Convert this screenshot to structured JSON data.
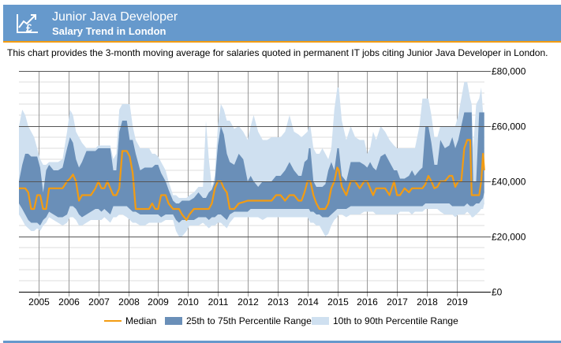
{
  "header": {
    "icon": "salary-trend-pound-icon",
    "title": "Junior Java Developer",
    "subtitle": "Salary Trend in London"
  },
  "description": "This chart provides the 3-month moving average for salaries quoted in permanent IT jobs citing Junior Java Developer in London.",
  "colors": {
    "header_bg": "#6699cc",
    "header_border": "#f39c12",
    "median": "#f39c12",
    "iqr_band": "#6a8fb8",
    "decile_band": "#cfe0f0"
  },
  "chart_data": {
    "type": "area",
    "title": "Junior Java Developer Salary Trend in London",
    "xlabel": "",
    "ylabel": "",
    "ylim": [
      0,
      80000
    ],
    "xlim": [
      2004.34,
      2019.92
    ],
    "y_ticks": [
      0,
      20000,
      40000,
      60000,
      80000
    ],
    "y_tick_labels": [
      "£0",
      "£20,000",
      "£40,000",
      "£60,000",
      "£80,000"
    ],
    "y_minor_step": 4000,
    "x_ticks": [
      2005,
      2006,
      2007,
      2008,
      2009,
      2010,
      2011,
      2012,
      2013,
      2014,
      2015,
      2016,
      2017,
      2018,
      2019
    ],
    "x_tick_labels": [
      "2005",
      "2006",
      "2007",
      "2008",
      "2009",
      "2010",
      "2011",
      "2012",
      "2013",
      "2014",
      "2015",
      "2016",
      "2017",
      "2018",
      "2019"
    ],
    "grid": true,
    "y_axis_position": "right",
    "legend": {
      "placement": "bottom",
      "entries": [
        {
          "label": "Median",
          "kind": "line"
        },
        {
          "label": "25th to 75th Percentile Range",
          "kind": "band-dark"
        },
        {
          "label": "10th to 90th Percentile Range",
          "kind": "band-light"
        }
      ]
    },
    "series_columns": [
      "year",
      "p10",
      "p25",
      "median",
      "p75",
      "p90"
    ],
    "series": [
      [
        2004.34,
        28000,
        32000,
        37500,
        40000,
        60000
      ],
      [
        2004.45,
        26000,
        30000,
        37500,
        46000,
        66000
      ],
      [
        2004.55,
        24000,
        28000,
        37500,
        50000,
        64000
      ],
      [
        2004.65,
        23000,
        26000,
        36000,
        50000,
        60000
      ],
      [
        2004.75,
        22000,
        25000,
        30000,
        49000,
        58000
      ],
      [
        2004.85,
        22000,
        25000,
        30000,
        49000,
        56000
      ],
      [
        2004.95,
        23000,
        25000,
        35000,
        49000,
        52000
      ],
      [
        2005.05,
        22000,
        24000,
        35000,
        45000,
        48000
      ],
      [
        2005.15,
        24000,
        26000,
        30000,
        36000,
        46000
      ],
      [
        2005.25,
        25000,
        27000,
        30000,
        44000,
        46000
      ],
      [
        2005.35,
        27000,
        29000,
        37500,
        46000,
        47000
      ],
      [
        2005.5,
        26000,
        28000,
        37500,
        44000,
        47000
      ],
      [
        2005.65,
        25000,
        27000,
        37500,
        44000,
        47000
      ],
      [
        2005.8,
        24000,
        27000,
        37500,
        45000,
        48000
      ],
      [
        2005.95,
        25000,
        28000,
        40000,
        52000,
        58000
      ],
      [
        2006.05,
        27000,
        31000,
        41000,
        56000,
        66000
      ],
      [
        2006.15,
        27000,
        31000,
        42500,
        54000,
        64000
      ],
      [
        2006.25,
        26000,
        30000,
        40000,
        48000,
        58000
      ],
      [
        2006.35,
        24000,
        28000,
        33000,
        45000,
        56000
      ],
      [
        2006.45,
        24000,
        27000,
        35000,
        47000,
        54000
      ],
      [
        2006.6,
        25000,
        28000,
        35000,
        51000,
        52000
      ],
      [
        2006.75,
        26000,
        29000,
        35000,
        51000,
        52000
      ],
      [
        2006.9,
        26000,
        30000,
        37500,
        51000,
        52000
      ],
      [
        2007.0,
        26000,
        30000,
        40000,
        52000,
        53000
      ],
      [
        2007.1,
        26000,
        29000,
        37500,
        52000,
        53000
      ],
      [
        2007.2,
        27000,
        30000,
        37500,
        52000,
        53000
      ],
      [
        2007.3,
        26000,
        29000,
        40000,
        52000,
        53000
      ],
      [
        2007.4,
        25000,
        28000,
        37500,
        52000,
        53000
      ],
      [
        2007.5,
        27000,
        31000,
        35000,
        44000,
        48000
      ],
      [
        2007.6,
        27000,
        31000,
        35000,
        44000,
        50000
      ],
      [
        2007.7,
        28000,
        31000,
        37500,
        58000,
        66000
      ],
      [
        2007.8,
        28000,
        31000,
        51000,
        62000,
        68000
      ],
      [
        2007.95,
        27000,
        31000,
        51000,
        62000,
        68000
      ],
      [
        2008.05,
        26000,
        30000,
        49000,
        55000,
        68000
      ],
      [
        2008.15,
        25000,
        29000,
        43000,
        55000,
        60000
      ],
      [
        2008.25,
        25000,
        29000,
        30000,
        50000,
        55000
      ],
      [
        2008.4,
        24000,
        28000,
        30000,
        44000,
        52000
      ],
      [
        2008.55,
        24000,
        28000,
        30000,
        45000,
        52000
      ],
      [
        2008.7,
        25000,
        28000,
        30000,
        45000,
        52000
      ],
      [
        2008.8,
        25000,
        28000,
        32000,
        45000,
        50000
      ],
      [
        2008.9,
        25000,
        28000,
        30000,
        46000,
        50000
      ],
      [
        2009.0,
        25000,
        28000,
        30000,
        46000,
        49000
      ],
      [
        2009.1,
        25000,
        27000,
        35000,
        43000,
        47000
      ],
      [
        2009.25,
        26000,
        28000,
        35000,
        40000,
        44000
      ],
      [
        2009.35,
        26000,
        28000,
        32000,
        37000,
        40000
      ],
      [
        2009.5,
        26000,
        28000,
        30000,
        33000,
        35000
      ],
      [
        2009.6,
        22000,
        26000,
        30000,
        32000,
        35000
      ],
      [
        2009.7,
        20000,
        25000,
        30000,
        32000,
        34000
      ],
      [
        2009.8,
        20000,
        26000,
        28000,
        33000,
        34000
      ],
      [
        2009.95,
        22000,
        26000,
        26000,
        33000,
        34000
      ],
      [
        2010.05,
        24000,
        26000,
        28000,
        33000,
        35000
      ],
      [
        2010.2,
        24000,
        26000,
        30000,
        34000,
        36000
      ],
      [
        2010.35,
        24000,
        27000,
        30000,
        36000,
        38000
      ],
      [
        2010.5,
        25000,
        27000,
        30000,
        34000,
        38000
      ],
      [
        2010.6,
        24000,
        27000,
        30000,
        34000,
        62000
      ],
      [
        2010.7,
        23000,
        26000,
        30000,
        36000,
        48000
      ],
      [
        2010.8,
        24000,
        27000,
        32000,
        37000,
        38000
      ],
      [
        2010.9,
        24000,
        27000,
        37500,
        40000,
        42000
      ],
      [
        2011.0,
        25000,
        28000,
        40000,
        53000,
        60000
      ],
      [
        2011.1,
        25000,
        28000,
        40000,
        60000,
        68000
      ],
      [
        2011.2,
        24000,
        27000,
        37500,
        57000,
        66000
      ],
      [
        2011.3,
        23000,
        26000,
        36000,
        50000,
        62000
      ],
      [
        2011.4,
        25000,
        28000,
        30000,
        47000,
        62000
      ],
      [
        2011.55,
        27000,
        29000,
        30000,
        46000,
        59000
      ],
      [
        2011.7,
        27000,
        29000,
        32000,
        50000,
        60000
      ],
      [
        2011.85,
        27000,
        29000,
        32500,
        48000,
        58000
      ],
      [
        2012.0,
        27000,
        29000,
        33000,
        40000,
        55000
      ],
      [
        2012.1,
        27000,
        30000,
        33000,
        42000,
        60000
      ],
      [
        2012.2,
        27000,
        30000,
        33000,
        40000,
        64000
      ],
      [
        2012.35,
        27000,
        30000,
        33000,
        38000,
        58000
      ],
      [
        2012.5,
        26000,
        30000,
        33000,
        40000,
        55000
      ],
      [
        2012.65,
        27000,
        30000,
        33000,
        40000,
        55000
      ],
      [
        2012.8,
        27000,
        30000,
        33000,
        40000,
        56000
      ],
      [
        2012.95,
        27000,
        30000,
        35000,
        42000,
        56000
      ],
      [
        2013.1,
        27000,
        30000,
        35000,
        42000,
        56000
      ],
      [
        2013.25,
        27000,
        30000,
        33000,
        44000,
        58000
      ],
      [
        2013.4,
        27000,
        30000,
        35000,
        47000,
        64000
      ],
      [
        2013.55,
        27000,
        30000,
        35000,
        44000,
        58000
      ],
      [
        2013.7,
        27000,
        30000,
        33000,
        42000,
        57000
      ],
      [
        2013.8,
        27000,
        30000,
        33000,
        42000,
        56000
      ],
      [
        2013.9,
        27000,
        30000,
        36000,
        47000,
        57000
      ],
      [
        2014.0,
        27000,
        30000,
        40000,
        48000,
        58000
      ],
      [
        2014.05,
        26000,
        30000,
        40000,
        52000,
        60000
      ],
      [
        2014.1,
        25000,
        29000,
        40000,
        52000,
        60000
      ],
      [
        2014.2,
        25000,
        29000,
        35000,
        40000,
        52000
      ],
      [
        2014.3,
        24000,
        28000,
        32000,
        38000,
        50000
      ],
      [
        2014.4,
        24000,
        28000,
        30000,
        38000,
        50000
      ],
      [
        2014.5,
        22000,
        27000,
        30000,
        38000,
        52000
      ],
      [
        2014.6,
        20000,
        27000,
        30000,
        39000,
        50000
      ],
      [
        2014.7,
        21000,
        27000,
        32000,
        44000,
        48000
      ],
      [
        2014.8,
        24000,
        28000,
        37500,
        47000,
        52000
      ],
      [
        2014.9,
        26000,
        29000,
        40000,
        44000,
        66000
      ],
      [
        2015.0,
        27000,
        30000,
        45000,
        52000,
        74000
      ],
      [
        2015.05,
        28000,
        30000,
        44000,
        52000,
        74000
      ],
      [
        2015.15,
        28000,
        30000,
        38000,
        42000,
        62000
      ],
      [
        2015.3,
        27000,
        30000,
        35000,
        40000,
        55000
      ],
      [
        2015.45,
        28000,
        31000,
        40000,
        47000,
        60000
      ],
      [
        2015.6,
        28000,
        31000,
        40000,
        47000,
        56000
      ],
      [
        2015.75,
        28000,
        31000,
        37500,
        47000,
        55000
      ],
      [
        2015.9,
        29000,
        31000,
        40000,
        46000,
        55000
      ],
      [
        2016.0,
        29000,
        31000,
        40000,
        45000,
        50000
      ],
      [
        2016.1,
        29000,
        31000,
        37500,
        47000,
        52000
      ],
      [
        2016.2,
        29000,
        31000,
        35000,
        45000,
        58000
      ],
      [
        2016.3,
        28000,
        31000,
        37500,
        44000,
        55000
      ],
      [
        2016.45,
        28000,
        31000,
        37500,
        49000,
        60000
      ],
      [
        2016.6,
        28000,
        31000,
        37500,
        50000,
        58000
      ],
      [
        2016.75,
        28000,
        31000,
        35000,
        47000,
        55000
      ],
      [
        2016.9,
        28000,
        31000,
        40000,
        44000,
        53000
      ],
      [
        2017.0,
        28000,
        31000,
        35000,
        44000,
        52000
      ],
      [
        2017.1,
        29000,
        31000,
        35000,
        41000,
        52000
      ],
      [
        2017.25,
        29000,
        31000,
        37500,
        41000,
        52000
      ],
      [
        2017.4,
        29000,
        31000,
        36000,
        42000,
        52000
      ],
      [
        2017.5,
        28000,
        31000,
        37500,
        44000,
        52000
      ],
      [
        2017.6,
        29000,
        31000,
        37500,
        42000,
        52000
      ],
      [
        2017.75,
        29000,
        31000,
        37500,
        44000,
        60000
      ],
      [
        2017.85,
        29000,
        31000,
        37500,
        45000,
        70000
      ],
      [
        2017.95,
        30000,
        32000,
        39000,
        60000,
        70000
      ],
      [
        2018.05,
        30000,
        32000,
        42000,
        60000,
        70000
      ],
      [
        2018.15,
        30000,
        32000,
        40000,
        54000,
        64000
      ],
      [
        2018.25,
        30000,
        32000,
        37500,
        46000,
        56000
      ],
      [
        2018.35,
        30000,
        32000,
        38000,
        46000,
        56000
      ],
      [
        2018.45,
        29000,
        32000,
        40000,
        55000,
        60000
      ],
      [
        2018.6,
        28000,
        32000,
        40000,
        52000,
        60000
      ],
      [
        2018.75,
        28000,
        32000,
        42000,
        53000,
        60000
      ],
      [
        2018.85,
        28000,
        31000,
        42000,
        56000,
        60000
      ],
      [
        2018.95,
        27000,
        31000,
        38000,
        52000,
        60000
      ],
      [
        2019.05,
        28000,
        31000,
        40000,
        55000,
        64000
      ],
      [
        2019.15,
        28000,
        31000,
        40000,
        60000,
        70000
      ],
      [
        2019.25,
        28000,
        31000,
        52000,
        65000,
        76000
      ],
      [
        2019.35,
        29000,
        32000,
        55000,
        65000,
        76000
      ],
      [
        2019.45,
        28000,
        31000,
        55000,
        65000,
        70000
      ],
      [
        2019.5,
        27000,
        31000,
        35000,
        65000,
        68000
      ],
      [
        2019.55,
        27000,
        31000,
        35000,
        40000,
        52000
      ],
      [
        2019.65,
        28000,
        32000,
        35000,
        40000,
        68000
      ],
      [
        2019.75,
        29000,
        32000,
        35000,
        65000,
        70000
      ],
      [
        2019.82,
        30000,
        33000,
        40000,
        65000,
        74000
      ],
      [
        2019.88,
        30000,
        34000,
        50000,
        65000,
        65000
      ],
      [
        2019.92,
        32000,
        36000,
        44000,
        65000,
        65000
      ]
    ]
  }
}
